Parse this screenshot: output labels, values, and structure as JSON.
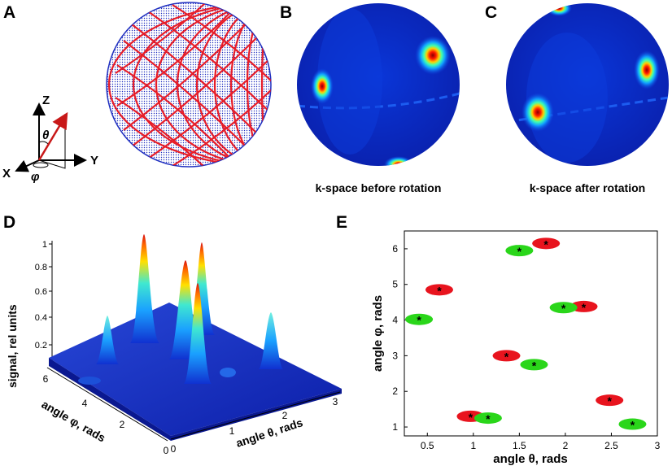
{
  "panels": {
    "a": "A",
    "b": "B",
    "c": "C",
    "d": "D",
    "e": "E"
  },
  "axes3d": {
    "z": "Z",
    "y": "Y",
    "x": "X",
    "theta": "θ",
    "phi": "φ"
  },
  "captions": {
    "before": "k-space before rotation",
    "after": "k-space after rotation"
  },
  "colors": {
    "red": "#e8141e",
    "green": "#2ad61a",
    "sphere_mesh": "#2030c0",
    "kspace_bg": "#0a2fd0"
  },
  "surface_plot": {
    "zlabel": "signal, rel units",
    "xlabel": "angle θ, rads",
    "ylabel": "angle φ, rads",
    "zticks": [
      "0.2",
      "0.4",
      "0.6",
      "0.8",
      "1"
    ],
    "xticks": [
      "0",
      "1",
      "2",
      "3"
    ],
    "yticks": [
      "0",
      "2",
      "4",
      "6"
    ]
  },
  "chart_data": {
    "type": "scatter",
    "title": "",
    "xlabel": "angle θ, rads",
    "ylabel": "angle φ, rads",
    "xlim": [
      0.25,
      3.0
    ],
    "ylim": [
      0.75,
      6.5
    ],
    "xticks": [
      0.5,
      1,
      1.5,
      2,
      2.5,
      3
    ],
    "yticks": [
      1,
      2,
      3,
      4,
      5,
      6
    ],
    "xtick_labels": [
      "0.5",
      "1",
      "1.5",
      "2",
      "2.5",
      "3"
    ],
    "ytick_labels": [
      "1",
      "2",
      "3",
      "4",
      "5",
      "6"
    ],
    "series": [
      {
        "name": "before rotation",
        "color": "red",
        "points": [
          [
            0.97,
            1.3
          ],
          [
            1.36,
            3.0
          ],
          [
            1.79,
            6.15
          ],
          [
            2.2,
            4.38
          ],
          [
            2.48,
            1.75
          ],
          [
            0.63,
            4.85
          ]
        ]
      },
      {
        "name": "after rotation",
        "color": "green",
        "points": [
          [
            1.16,
            1.25
          ],
          [
            1.66,
            2.75
          ],
          [
            1.5,
            5.95
          ],
          [
            1.98,
            4.35
          ],
          [
            2.73,
            1.08
          ],
          [
            0.41,
            4.02
          ]
        ]
      }
    ]
  }
}
